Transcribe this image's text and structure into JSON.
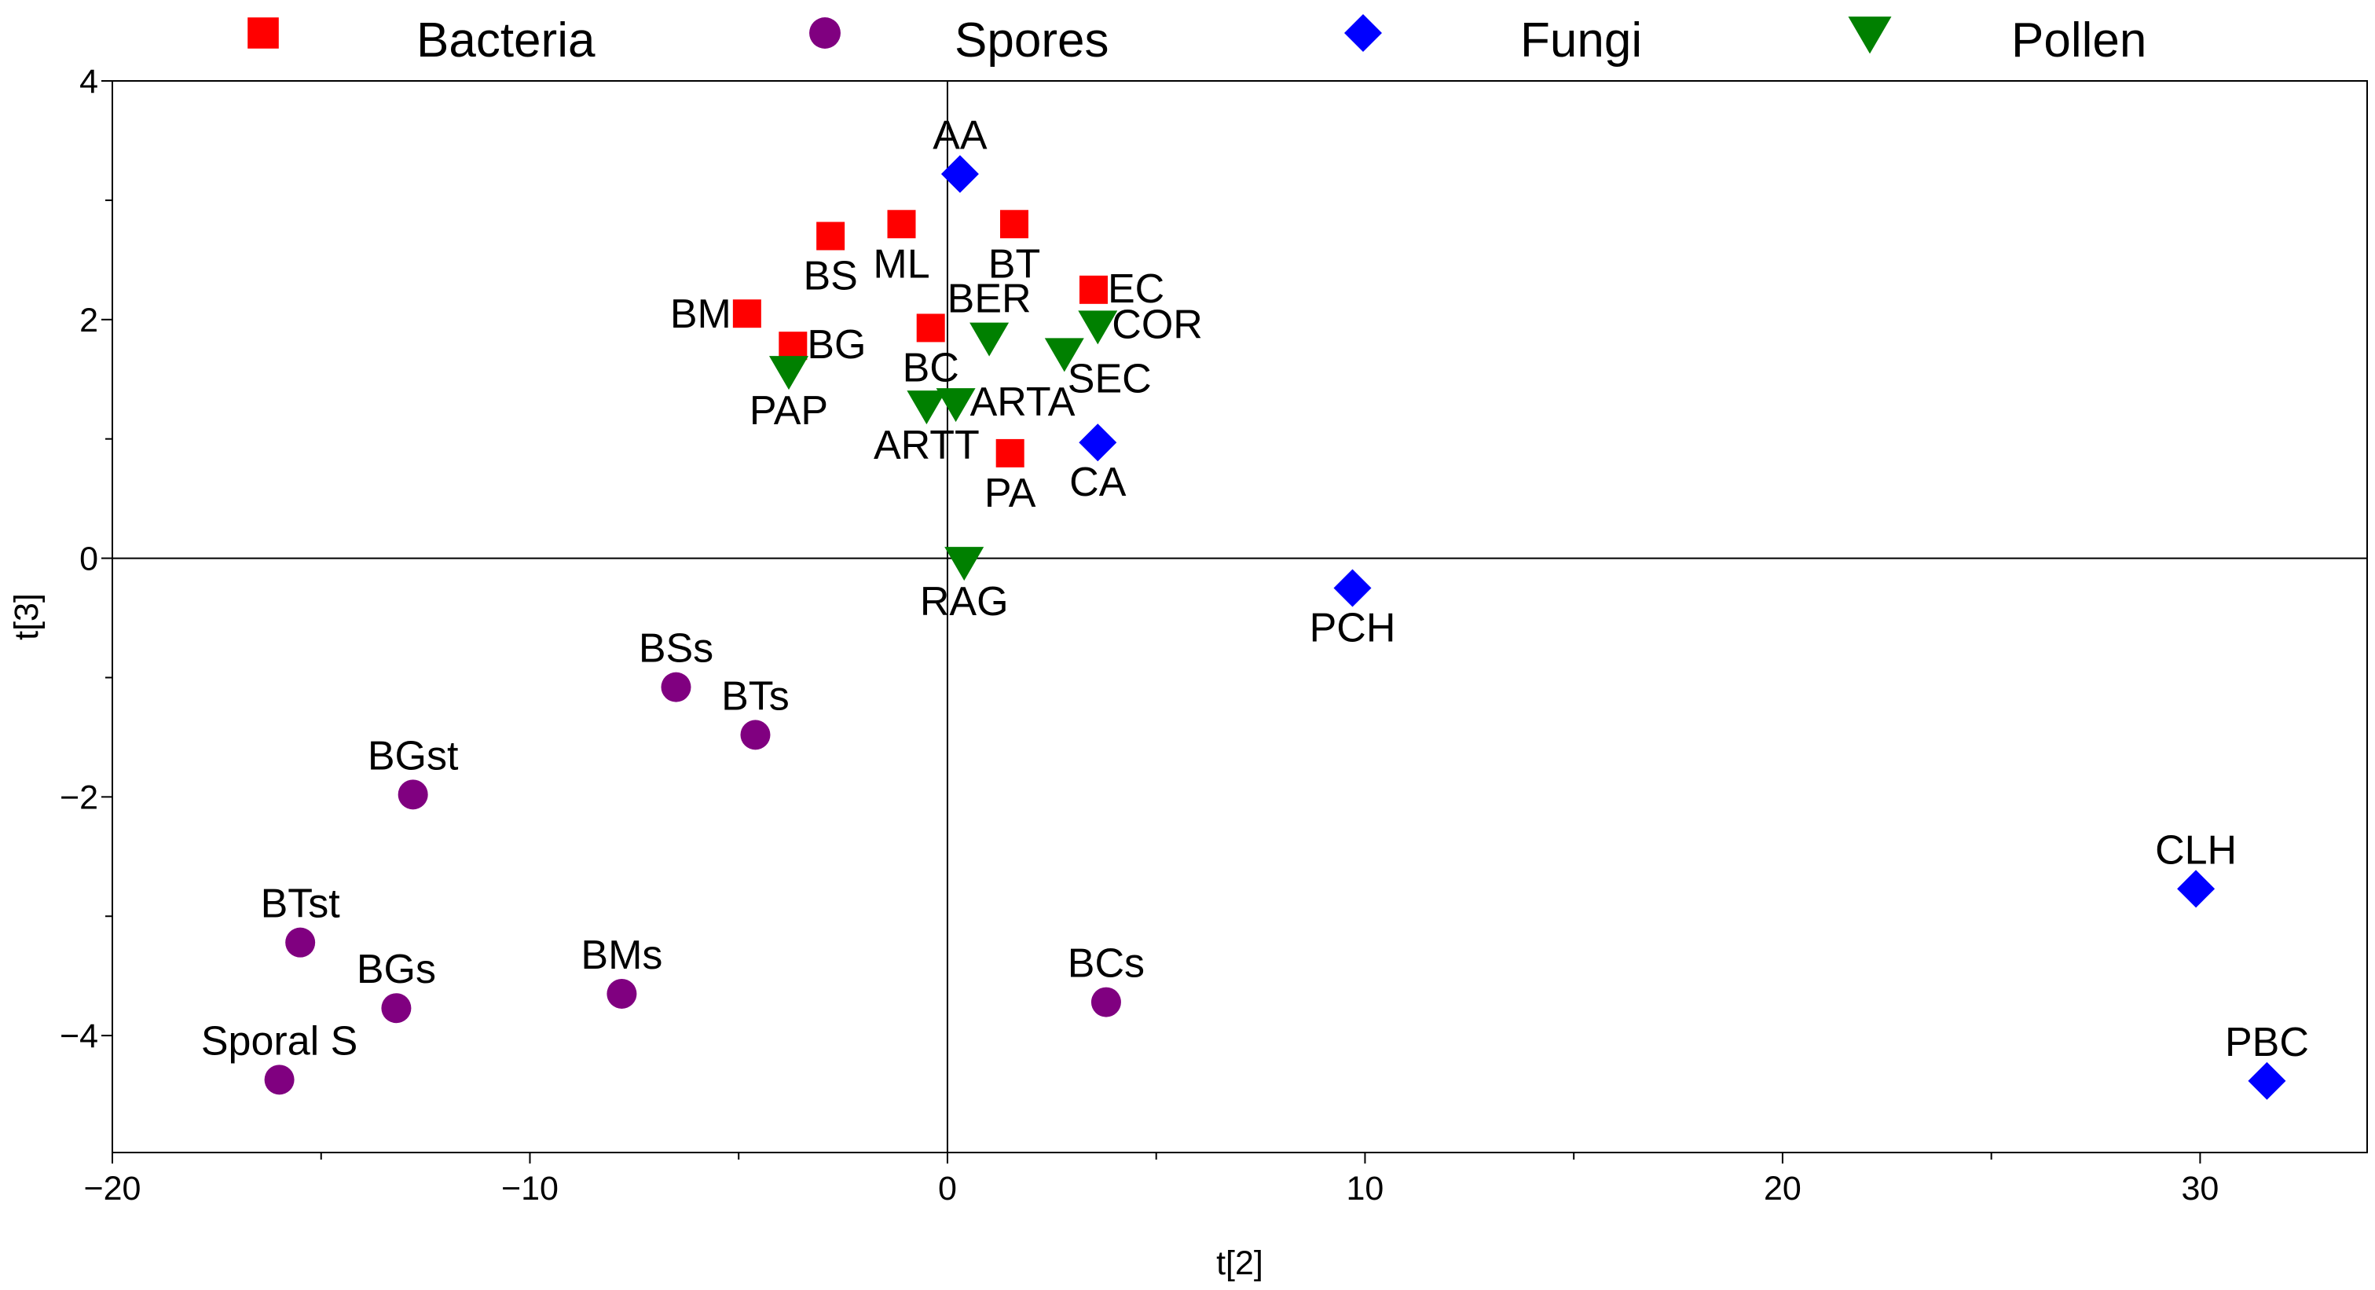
{
  "chart_data": {
    "type": "scatter",
    "xlabel": "t[2]",
    "ylabel": "t[3]",
    "xlim": [
      -20,
      34
    ],
    "ylim": [
      -4.98,
      4
    ],
    "x_ticks": [
      -20,
      -10,
      0,
      10,
      20,
      30
    ],
    "x_tick_labels": [
      "−20",
      "−10",
      "0",
      "10",
      "20",
      "30"
    ],
    "y_ticks": [
      4,
      2,
      0,
      -2,
      -4
    ],
    "y_tick_labels": [
      "4",
      "2",
      "0",
      "−2",
      "−4"
    ],
    "reference_lines": {
      "x": 0,
      "y": 0
    },
    "legend_position": "top",
    "series": [
      {
        "name": "Bacteria",
        "marker": "square",
        "color": "#ff0000",
        "points": [
          {
            "label": "BS",
            "x": -2.8,
            "y": 2.7,
            "label_pos": "below"
          },
          {
            "label": "ML",
            "x": -1.1,
            "y": 2.8,
            "label_pos": "below"
          },
          {
            "label": "BT",
            "x": 1.6,
            "y": 2.8,
            "label_pos": "below"
          },
          {
            "label": "BM",
            "x": -4.8,
            "y": 2.05,
            "label_pos": "left"
          },
          {
            "label": "BG",
            "x": -3.7,
            "y": 1.78,
            "label_pos": "right"
          },
          {
            "label": "BC",
            "x": -0.4,
            "y": 1.93,
            "label_pos": "below"
          },
          {
            "label": "EC",
            "x": 3.5,
            "y": 2.25,
            "label_pos": "right"
          },
          {
            "label": "PA",
            "x": 1.5,
            "y": 0.88,
            "label_pos": "below"
          }
        ]
      },
      {
        "name": "Spores",
        "marker": "circle",
        "color": "#800080",
        "points": [
          {
            "label": "BSs",
            "x": -6.5,
            "y": -1.08,
            "label_pos": "above"
          },
          {
            "label": "BTs",
            "x": -4.6,
            "y": -1.48,
            "label_pos": "above"
          },
          {
            "label": "BGst",
            "x": -12.8,
            "y": -1.98,
            "label_pos": "above"
          },
          {
            "label": "BTst",
            "x": -15.5,
            "y": -3.22,
            "label_pos": "above"
          },
          {
            "label": "BGs",
            "x": -13.2,
            "y": -3.77,
            "label_pos": "above"
          },
          {
            "label": "BMs",
            "x": -7.8,
            "y": -3.65,
            "label_pos": "above"
          },
          {
            "label": "Sporal S",
            "x": -16.0,
            "y": -4.37,
            "label_pos": "above"
          },
          {
            "label": "BCs",
            "x": 3.8,
            "y": -3.72,
            "label_pos": "above"
          }
        ]
      },
      {
        "name": "Fungi",
        "marker": "diamond",
        "color": "#0000ff",
        "points": [
          {
            "label": "AA",
            "x": 0.3,
            "y": 3.22,
            "label_pos": "above"
          },
          {
            "label": "CA",
            "x": 3.6,
            "y": 0.97,
            "label_pos": "below"
          },
          {
            "label": "PCH",
            "x": 9.7,
            "y": -0.25,
            "label_pos": "below"
          },
          {
            "label": "CLH",
            "x": 29.9,
            "y": -2.77,
            "label_pos": "above"
          },
          {
            "label": "PBC",
            "x": 31.6,
            "y": -4.38,
            "label_pos": "above"
          }
        ]
      },
      {
        "name": "Pollen",
        "marker": "triangle-down",
        "color": "#008000",
        "points": [
          {
            "label": "BER",
            "x": 1.0,
            "y": 1.85,
            "label_pos": "above"
          },
          {
            "label": "COR",
            "x": 3.6,
            "y": 1.95,
            "label_pos": "right"
          },
          {
            "label": "SEC",
            "x": 2.8,
            "y": 1.72,
            "label_pos": "right-below"
          },
          {
            "label": "PAP",
            "x": -3.8,
            "y": 1.57,
            "label_pos": "below"
          },
          {
            "label": "ARTA",
            "x": 0.2,
            "y": 1.3,
            "label_pos": "right"
          },
          {
            "label": "ARTT",
            "x": -0.5,
            "y": 1.28,
            "label_pos": "below"
          },
          {
            "label": "RAG",
            "x": 0.4,
            "y": -0.03,
            "label_pos": "below"
          }
        ]
      }
    ]
  }
}
